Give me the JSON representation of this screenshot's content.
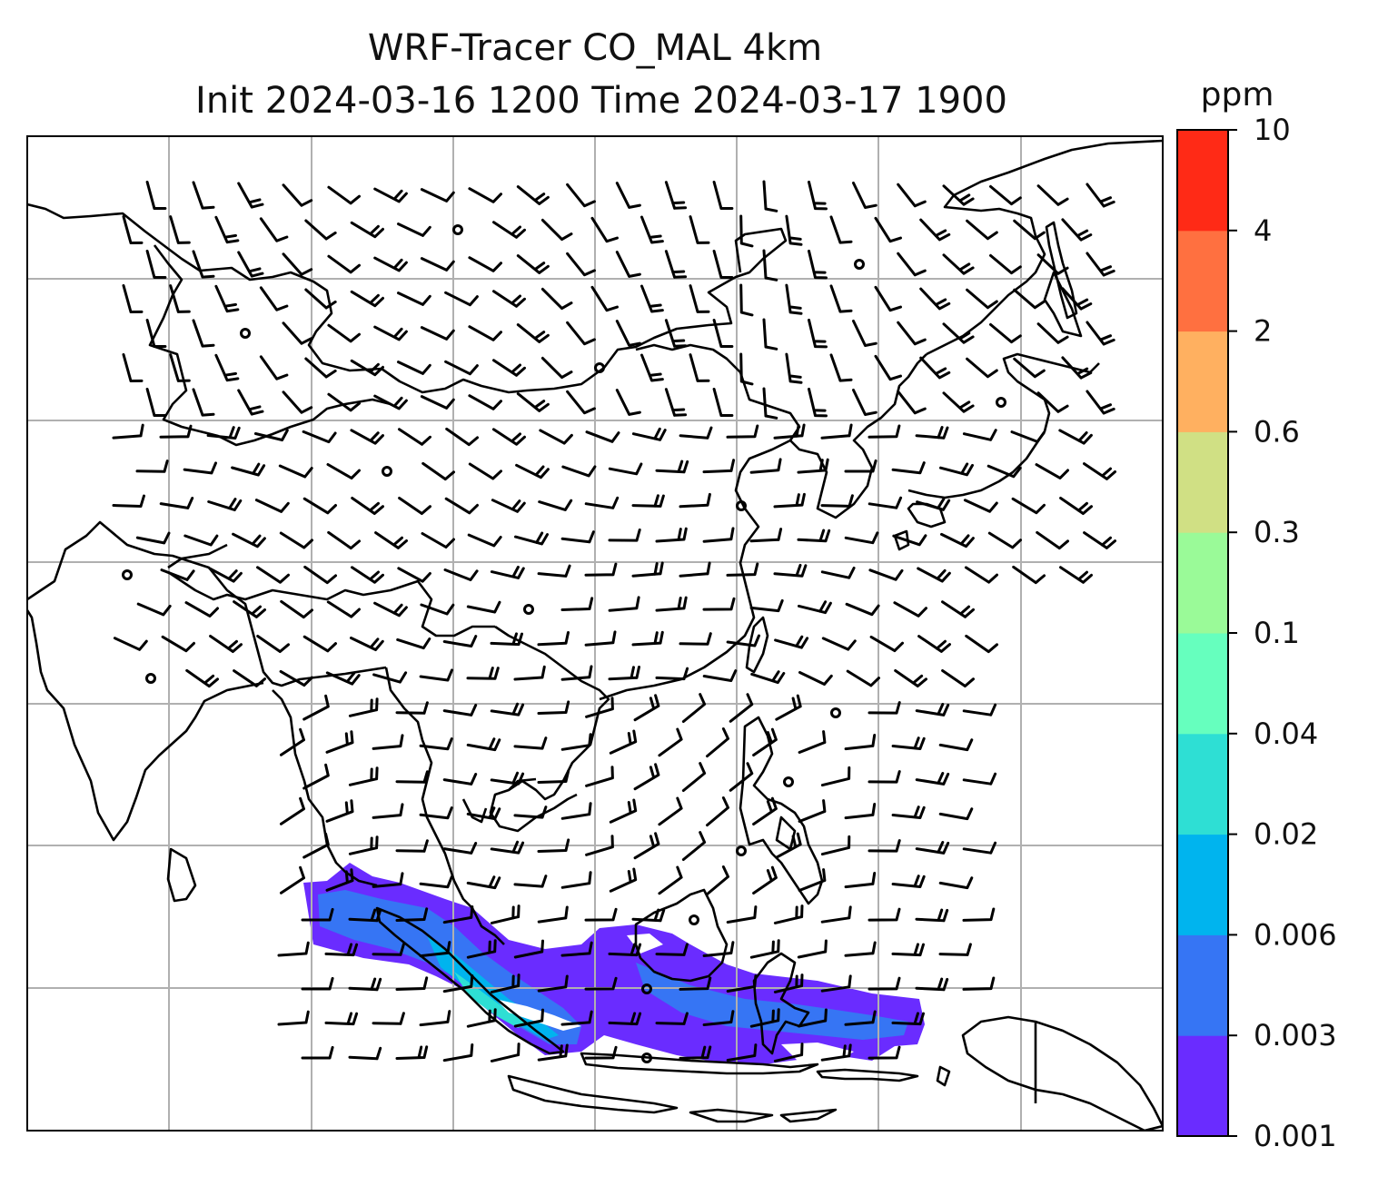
{
  "title": {
    "line1": "WRF-Tracer CO_MAL 4km",
    "line2": "Init 2024-03-16 1200 Time 2024-03-17 1900"
  },
  "colorbar": {
    "unit": "ppm",
    "levels": [
      "0.001",
      "0.003",
      "0.006",
      "0.02",
      "0.04",
      "0.1",
      "0.3",
      "0.6",
      "2",
      "4",
      "10"
    ],
    "colors": [
      "#6a2cff",
      "#3675f4",
      "#00b4ee",
      "#2edfd4",
      "#66ffbe",
      "#9afa98",
      "#d0e084",
      "#ffb060",
      "#ff7040",
      "#ff2a16"
    ]
  },
  "map": {
    "gridline_color": "#b0b0b0",
    "coastline_color": "#000000",
    "plume_colors": {
      "outer": "#6a2cff",
      "mid": "#3675f4",
      "inner": "#00b4ee",
      "core": "#2edfd4"
    }
  }
}
